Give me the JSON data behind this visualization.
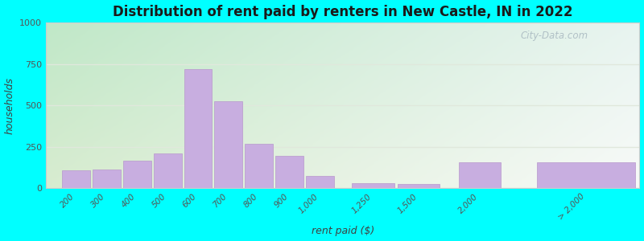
{
  "title": "Distribution of rent paid by renters in New Castle, IN in 2022",
  "xlabel": "rent paid ($)",
  "ylabel": "households",
  "bar_color": "#c8aee0",
  "bar_edgecolor": "#b898cc",
  "categories": [
    "200",
    "300",
    "400",
    "500",
    "600",
    "700",
    "800",
    "900",
    "1,000",
    "1,250",
    "1,500",
    "2,000",
    "> 2,000"
  ],
  "values": [
    110,
    115,
    165,
    210,
    720,
    525,
    270,
    195,
    75,
    30,
    25,
    155,
    155
  ],
  "bar_positions": [
    0,
    1,
    2,
    3,
    4,
    5,
    6,
    7,
    8,
    9.5,
    11,
    13,
    15.5
  ],
  "bar_widths": [
    1,
    1,
    1,
    1,
    1,
    1,
    1,
    1,
    1,
    1.5,
    1.5,
    1.5,
    3.5
  ],
  "xlim": [
    -0.5,
    19
  ],
  "ylim": [
    0,
    1000
  ],
  "yticks": [
    0,
    250,
    500,
    750,
    1000
  ],
  "bg_top_left": "#c0e8c8",
  "bg_top_right": "#e8f4f0",
  "bg_bottom_left": "#d8ecd0",
  "bg_bottom_right": "#f8faf8",
  "outer_bg": "#00ffff",
  "watermark": "City-Data.com",
  "tick_label_color": "#555555",
  "grid_color": "#e0e8dc",
  "spine_color": "#cccccc"
}
